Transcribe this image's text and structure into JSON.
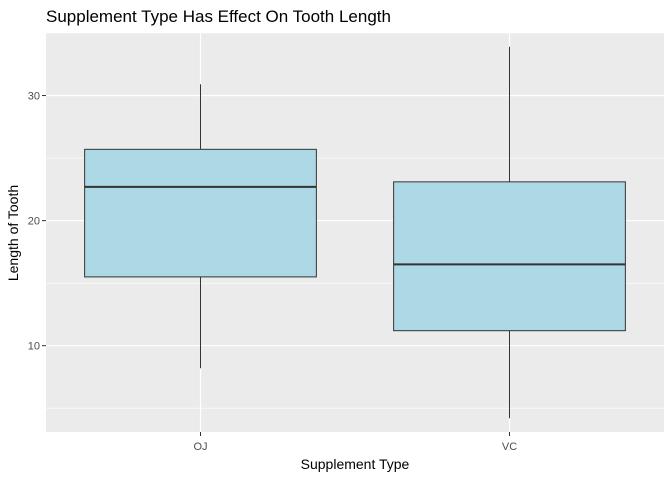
{
  "chart_data": {
    "type": "boxplot",
    "title": "Supplement Type Has Effect On Tooth Length",
    "xlabel": "Supplement Type",
    "ylabel": "Length of Tooth",
    "categories": [
      "OJ",
      "VC"
    ],
    "boxes": [
      {
        "category": "OJ",
        "min": 8.2,
        "q1": 15.5,
        "median": 22.7,
        "q3": 25.7,
        "max": 30.9
      },
      {
        "category": "VC",
        "min": 4.2,
        "q1": 11.2,
        "median": 16.5,
        "q3": 23.1,
        "max": 33.9
      }
    ],
    "y_ticks": [
      10,
      20,
      30
    ],
    "ylim": [
      3.1,
      35.0
    ],
    "grid": true,
    "legend": "none",
    "colors": {
      "box_fill": "#ADD8E6",
      "panel_background": "#EBEBEB",
      "grid_major": "#FFFFFF",
      "outline": "#333333"
    }
  }
}
